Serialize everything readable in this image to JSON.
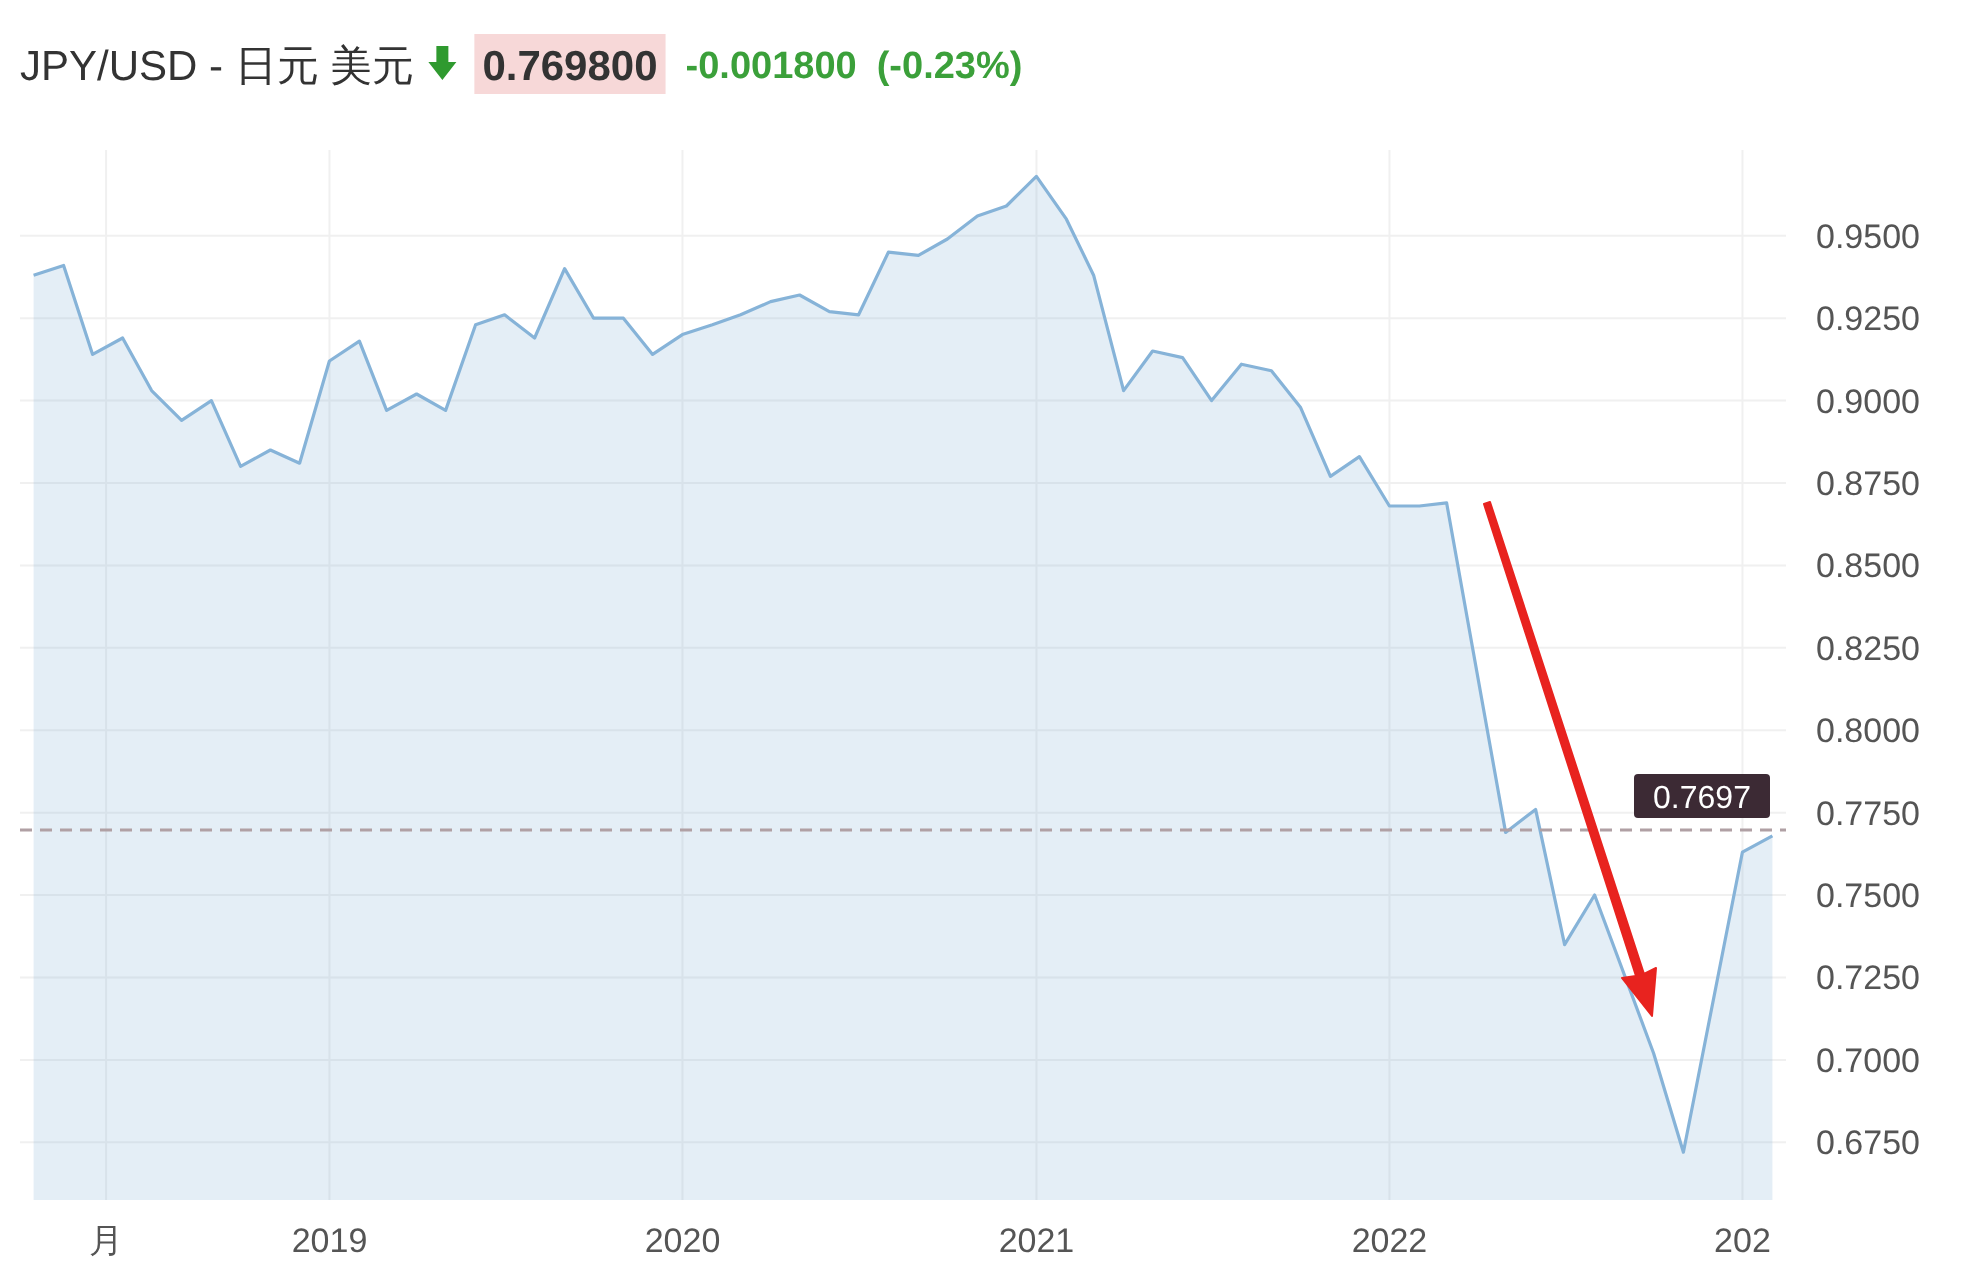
{
  "chart_data": {
    "type": "area",
    "title": "JPY/USD - 日元 美元",
    "annotations": [
      "0.769800",
      "-0.001800",
      "(-0.23%)"
    ],
    "x": [
      "2018-03",
      "2018-04",
      "2018-05",
      "2018-06",
      "2018-07",
      "2018-08",
      "2018-09",
      "2018-10",
      "2018-11",
      "2018-12",
      "2019-01",
      "2019-02",
      "2019-03",
      "2019-04",
      "2019-05",
      "2019-06",
      "2019-07",
      "2019-08",
      "2019-09",
      "2019-10",
      "2019-11",
      "2019-12",
      "2020-01",
      "2020-02",
      "2020-03",
      "2020-04",
      "2020-05",
      "2020-06",
      "2020-07",
      "2020-08",
      "2020-09",
      "2020-10",
      "2020-11",
      "2020-12",
      "2021-01",
      "2021-02",
      "2021-03",
      "2021-04",
      "2021-05",
      "2021-06",
      "2021-07",
      "2021-08",
      "2021-09",
      "2021-10",
      "2021-11",
      "2021-12",
      "2022-01",
      "2022-02",
      "2022-03",
      "2022-05",
      "2022-06",
      "2022-07",
      "2022-08",
      "2022-10",
      "2022-11",
      "2023-01",
      "2023-02"
    ],
    "values": [
      0.938,
      0.941,
      0.914,
      0.919,
      0.903,
      0.894,
      0.9,
      0.88,
      0.885,
      0.881,
      0.912,
      0.918,
      0.897,
      0.902,
      0.897,
      0.923,
      0.926,
      0.919,
      0.94,
      0.925,
      0.925,
      0.914,
      0.92,
      0.923,
      0.926,
      0.93,
      0.932,
      0.927,
      0.926,
      0.945,
      0.944,
      0.949,
      0.956,
      0.959,
      0.968,
      0.955,
      0.938,
      0.903,
      0.915,
      0.913,
      0.9,
      0.911,
      0.909,
      0.898,
      0.877,
      0.883,
      0.868,
      0.868,
      0.869,
      0.769,
      0.776,
      0.735,
      0.75,
      0.702,
      0.672,
      0.763,
      0.768
    ],
    "color": "#86b3d8",
    "xlim": [
      "2018-02-15",
      "2023-02-15"
    ],
    "ylim": [
      0.6575,
      0.976
    ],
    "xticks": [
      {
        "value": "2018-05-15",
        "label": "月"
      },
      {
        "value": "2019",
        "label": "2019"
      },
      {
        "value": "2020",
        "label": "2020"
      },
      {
        "value": "2021",
        "label": "2021"
      },
      {
        "value": "2022",
        "label": "2022"
      },
      {
        "value": "2023",
        "label": "202"
      }
    ],
    "yticks": [
      {
        "value": 0.675,
        "label": "0.6750"
      },
      {
        "value": 0.7,
        "label": "0.7000"
      },
      {
        "value": 0.725,
        "label": "0.7250"
      },
      {
        "value": 0.75,
        "label": "0.7500"
      },
      {
        "value": 0.775,
        "label": "0.7750"
      },
      {
        "value": 0.8,
        "label": "0.8000"
      },
      {
        "value": 0.825,
        "label": "0.8250"
      },
      {
        "value": 0.85,
        "label": "0.8500"
      },
      {
        "value": 0.875,
        "label": "0.8750"
      },
      {
        "value": 0.9,
        "label": "0.9000"
      },
      {
        "value": 0.925,
        "label": "0.9250"
      },
      {
        "value": 0.95,
        "label": "0.9500"
      }
    ],
    "grid": true,
    "ref_lines": [
      {
        "axis": "y",
        "value": 0.7697,
        "label": "0.7697",
        "color": "#b0a0a4",
        "line_style": "dashed"
      }
    ]
  }
}
